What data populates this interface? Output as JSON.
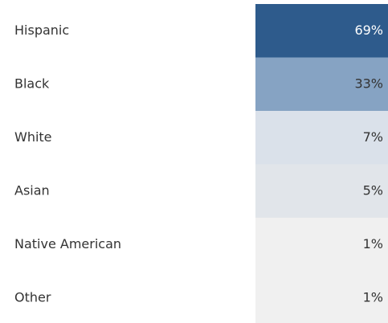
{
  "chart_data": {
    "type": "highlight_table",
    "categories": [
      "Hispanic",
      "Black",
      "White",
      "Asian",
      "Native American",
      "Other"
    ],
    "values": [
      69,
      33,
      7,
      5,
      1,
      1
    ],
    "value_labels": [
      "69%",
      "33%",
      "7%",
      "5%",
      "1%",
      "1%"
    ],
    "colors": [
      "#2e5b8c",
      "#86a3c3",
      "#dae1ea",
      "#e1e5ea",
      "#f0f0f0",
      "#f0f0f0"
    ]
  }
}
